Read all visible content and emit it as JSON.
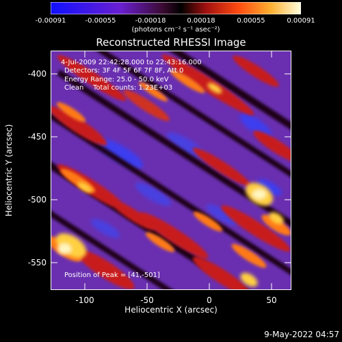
{
  "colorbar": {
    "ticks": [
      "-0.00091",
      "-0.00055",
      "-0.00018",
      "0.00018",
      "0.00055",
      "0.00091"
    ],
    "units": "(photons cm⁻² s⁻¹ asec⁻²)"
  },
  "plot": {
    "title": "Reconstructed RHESSI Image",
    "info": {
      "time_range": "4-Jul-2009 22:42:28.000 to 22:43:16.000",
      "detectors": "Detectors: 3F 4F 5F 6F 7F 8F, Att 0",
      "energy_range": "Energy Range: 25.0 - 50.0 keV",
      "algorithm": "Clean",
      "total_counts": "Total counts: 1.23E+03",
      "peak_position": "Position of Peak = [41,-501]"
    },
    "xlabel": "Heliocentric X (arcsec)",
    "ylabel": "Heliocentric Y (arcsec)",
    "xticks": [
      "-100",
      "-50",
      "0",
      "50"
    ],
    "yticks": [
      "-400",
      "-450",
      "-500",
      "-550"
    ],
    "xlim": [
      -130,
      64
    ],
    "ylim": [
      -573,
      -385
    ],
    "colormap": "blue-purple-red-orange-yellow-white",
    "colors": {
      "blue": "#2a2aff",
      "purple": "#7a3ab8",
      "dark": "#1a0610",
      "red": "#c81e1e",
      "orange": "#ff8a18",
      "yellow": "#ffe050",
      "white": "#fffae0"
    }
  },
  "footer": {
    "timestamp": "9-May-2022 04:57"
  }
}
